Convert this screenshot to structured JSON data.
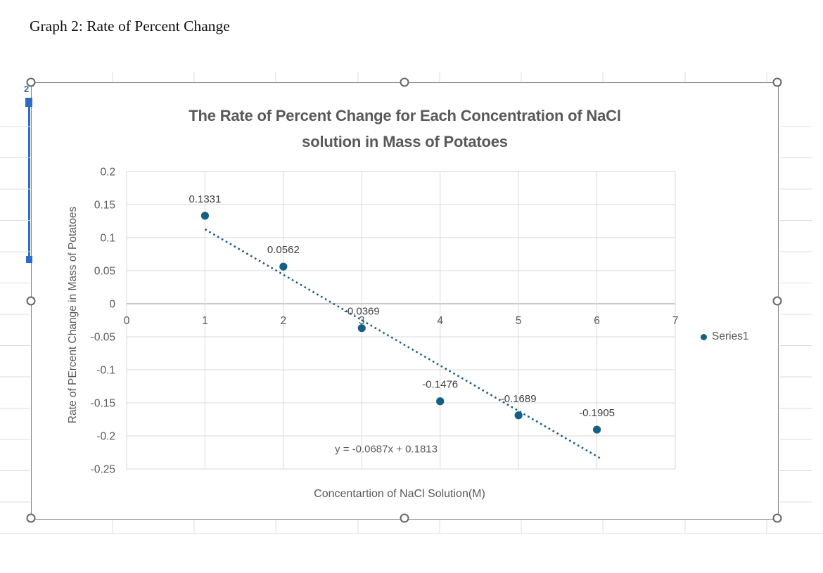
{
  "document": {
    "heading": "Graph 2: Rate of Percent Change",
    "chart_selected": true
  },
  "artifacts": {
    "clipped_cell_text": "2",
    "highlight_color": "#2F6BC6",
    "speck_color": "#C00000"
  },
  "chart_data": {
    "type": "scatter",
    "title": "The Rate of Percent Change for Each Concentration of NaCl solution in Mass of Potatoes",
    "title_lines": [
      "The Rate of Percent Change for Each Concentration of NaCl",
      "solution in Mass of Potatoes"
    ],
    "xlabel": "Concentartion of NaCl Solution(M)",
    "ylabel": "Rate of PErcent Change in Mass of Potatoes",
    "xlim": [
      0,
      7
    ],
    "ylim": [
      -0.25,
      0.2
    ],
    "grid": true,
    "x_ticks": [
      0,
      1,
      2,
      3,
      4,
      5,
      6,
      7
    ],
    "x_tick_labels": [
      "0",
      "1",
      "2",
      "3",
      "4",
      "5",
      "6",
      "7"
    ],
    "y_ticks": [
      0.2,
      0.15,
      0.1,
      0.05,
      0,
      -0.05,
      -0.1,
      -0.15,
      -0.2,
      -0.25
    ],
    "y_tick_labels": [
      "0.2",
      "0.15",
      "0.1",
      "0.05",
      "0",
      "-0.05",
      "-0.1",
      "-0.15",
      "-0.2",
      "-0.25"
    ],
    "series": [
      {
        "name": "Series1",
        "points": [
          {
            "x": 1,
            "y": 0.1331,
            "label": "0.1331"
          },
          {
            "x": 2,
            "y": 0.0562,
            "label": "0.0562"
          },
          {
            "x": 3,
            "y": -0.0369,
            "label": "-0.0369"
          },
          {
            "x": 4,
            "y": -0.1476,
            "label": "-0.1476"
          },
          {
            "x": 5,
            "y": -0.1689,
            "label": "-0.1689"
          },
          {
            "x": 6,
            "y": -0.1905,
            "label": "-0.1905"
          }
        ]
      }
    ],
    "trendline": {
      "equation": "y = -0.0687x + 0.1813",
      "slope": -0.0687,
      "intercept": 0.1813,
      "x_start": 1,
      "x_end": 6.05,
      "style": "dotted"
    },
    "legend": {
      "position": "right",
      "entries": [
        "Series1"
      ]
    },
    "colors": {
      "series": "#156082",
      "gridline": "#D9D9D9",
      "zero_axis": "#A6A6A6",
      "plot_border": "#D9D9D9",
      "axis_text": "#595959",
      "data_label_text": "#404040",
      "sheet_gridline": "#DCDCDC"
    }
  }
}
